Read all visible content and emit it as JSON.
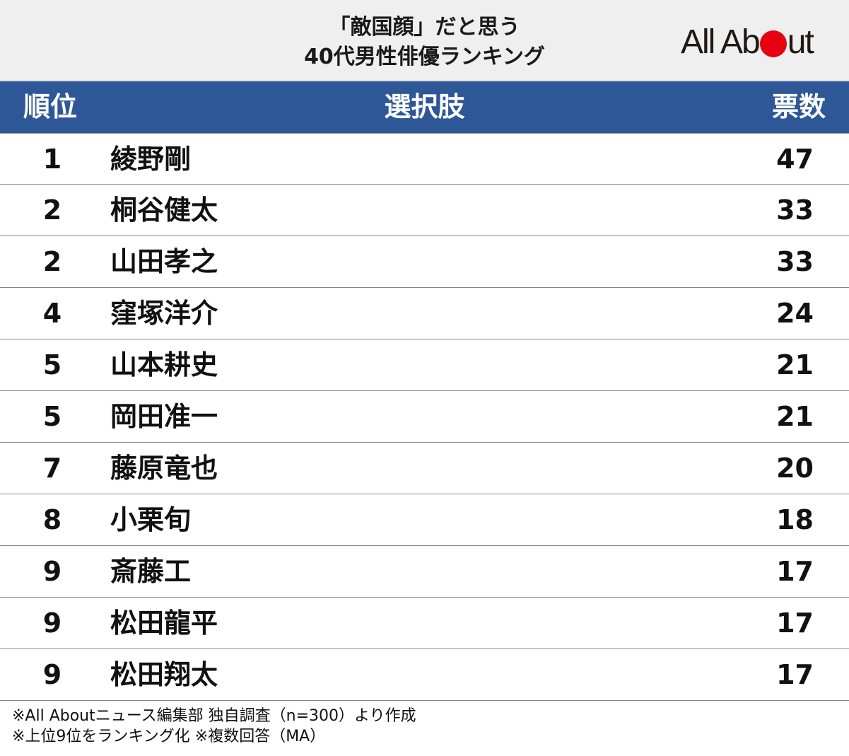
{
  "title": {
    "line1": "「敵国顔」だと思う",
    "line2": "40代男性俳優ランキング"
  },
  "logo": {
    "text_before": "All Ab",
    "text_after": "ut",
    "dot_color": "#e60012"
  },
  "header": {
    "rank": "順位",
    "choice": "選択肢",
    "votes": "票数",
    "bg_color": "#2e5797"
  },
  "rows": [
    {
      "rank": "1",
      "name": "綾野剛",
      "votes": "47"
    },
    {
      "rank": "2",
      "name": "桐谷健太",
      "votes": "33"
    },
    {
      "rank": "2",
      "name": "山田孝之",
      "votes": "33"
    },
    {
      "rank": "4",
      "name": "窪塚洋介",
      "votes": "24"
    },
    {
      "rank": "5",
      "name": "山本耕史",
      "votes": "21"
    },
    {
      "rank": "5",
      "name": "岡田准一",
      "votes": "21"
    },
    {
      "rank": "7",
      "name": "藤原竜也",
      "votes": "20"
    },
    {
      "rank": "8",
      "name": "小栗旬",
      "votes": "18"
    },
    {
      "rank": "9",
      "name": "斎藤工",
      "votes": "17"
    },
    {
      "rank": "9",
      "name": "松田龍平",
      "votes": "17"
    },
    {
      "rank": "9",
      "name": "松田翔太",
      "votes": "17"
    }
  ],
  "notes": {
    "line1": "※All Aboutニュース編集部 独自調査（n=300）より作成",
    "line2": "※上位9位をランキング化 ※複数回答（MA）"
  }
}
